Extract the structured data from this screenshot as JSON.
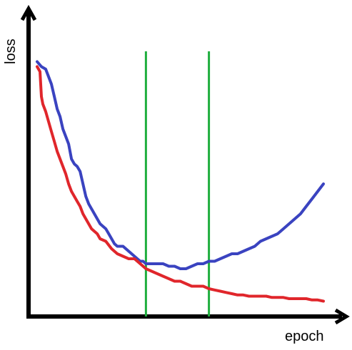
{
  "chart_data": {
    "type": "line",
    "title": "",
    "xlabel": "epoch",
    "ylabel": "loss",
    "xlim": [
      0,
      100
    ],
    "ylim": [
      0,
      100
    ],
    "grid": false,
    "series": [
      {
        "color": "#3a43c0",
        "x": [
          0,
          1.5,
          3,
          4,
          5,
          6,
          7,
          8,
          9,
          10,
          11,
          12,
          13,
          14,
          15,
          16,
          17,
          18,
          19,
          20,
          21,
          22,
          23,
          24,
          25,
          26,
          27,
          28,
          29,
          30,
          31,
          32,
          33,
          34,
          35,
          36,
          37,
          38,
          40,
          42,
          44,
          46,
          48,
          50,
          52,
          54,
          56,
          58,
          60,
          62,
          64,
          66,
          68,
          70,
          72,
          74,
          76,
          78,
          80,
          82,
          84,
          86,
          88,
          90,
          92,
          94,
          96,
          98,
          100
        ],
        "values": [
          99,
          97,
          96,
          93,
          90,
          85,
          80,
          77,
          72,
          69,
          66,
          60,
          58,
          57,
          55,
          50,
          45,
          42,
          40,
          38,
          36,
          34,
          33,
          32,
          30,
          28,
          26,
          25,
          25,
          25,
          24,
          23,
          22,
          21,
          20,
          19,
          19,
          18,
          18,
          18,
          18,
          17,
          17,
          16,
          16,
          17,
          18,
          18,
          19,
          19,
          20,
          21,
          22,
          22,
          23,
          24,
          25,
          27,
          28,
          29,
          30,
          32,
          34,
          36,
          38,
          41,
          44,
          47,
          50
        ]
      },
      {
        "color": "#e0262b",
        "x": [
          0,
          1,
          1.5,
          2,
          3,
          4,
          5,
          6,
          7,
          8,
          9,
          10,
          11,
          12,
          13,
          14,
          15,
          16,
          17,
          18,
          19,
          20,
          21,
          22,
          24,
          26,
          28,
          30,
          32,
          34,
          36,
          38,
          40,
          42,
          44,
          46,
          48,
          50,
          52,
          54,
          56,
          58,
          60,
          62,
          64,
          66,
          68,
          70,
          72,
          74,
          76,
          78,
          80,
          82,
          84,
          86,
          88,
          90,
          92,
          94,
          96,
          98,
          100
        ],
        "values": [
          97,
          95,
          85,
          82,
          79,
          75,
          71,
          67,
          63,
          60,
          57,
          54,
          50,
          47,
          45,
          43,
          41,
          38,
          36,
          34,
          32,
          31,
          30,
          28,
          27,
          24,
          22,
          21,
          20,
          20,
          18,
          16,
          15,
          14,
          13,
          12,
          11,
          11,
          10,
          9,
          9,
          9,
          8,
          7.5,
          7,
          6.5,
          6,
          5.5,
          5.5,
          5,
          5,
          5,
          5,
          4.5,
          4.5,
          4.5,
          4,
          4,
          4,
          4,
          3.5,
          3.5,
          3
        ]
      }
    ],
    "vertical_lines": [
      {
        "x": 38,
        "color": "#1fae3e"
      },
      {
        "x": 60,
        "color": "#1fae3e"
      }
    ]
  }
}
